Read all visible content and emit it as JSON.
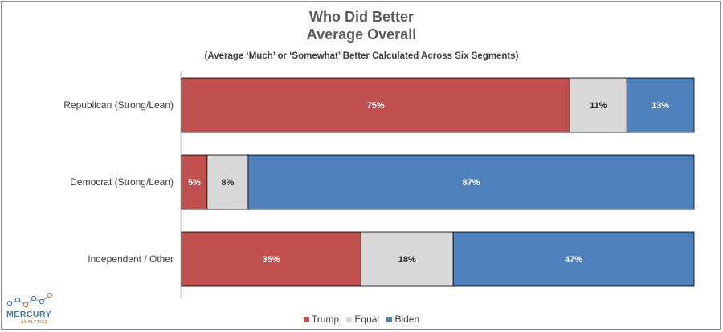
{
  "chart_data": {
    "type": "bar",
    "orientation": "horizontal",
    "stacked": true,
    "title_line1": "Who Did Better",
    "title_line2": "Average Overall",
    "subtitle": "(Average ‘Much’ or ‘Somewhat’ Better Calculated Across Six Segments)",
    "categories": [
      "Republican (Strong/Lean)",
      "Democrat (Strong/Lean)",
      "Independent / Other"
    ],
    "series": [
      {
        "name": "Trump",
        "color": "#c0504d",
        "values": [
          75,
          5,
          35
        ],
        "labels": [
          "75%",
          "5%",
          "35%"
        ]
      },
      {
        "name": "Equal",
        "color": "#d9d9d9",
        "values": [
          11,
          8,
          18
        ],
        "labels": [
          "11%",
          "8%",
          "18%"
        ]
      },
      {
        "name": "Biden",
        "color": "#4f81bd",
        "values": [
          13,
          87,
          47
        ],
        "labels": [
          "13%",
          "87%",
          "47%"
        ]
      }
    ],
    "xlim": [
      0,
      100
    ],
    "legend_position": "bottom",
    "grid": false
  },
  "logo": {
    "name": "MERCURY",
    "sub": "ANALYTICS"
  }
}
